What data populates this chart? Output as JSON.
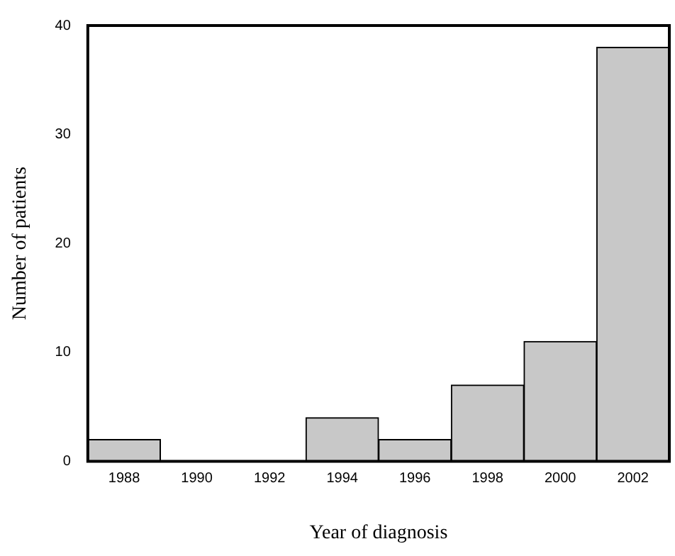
{
  "chart_data": {
    "type": "bar",
    "xlabel": "Year of diagnosis",
    "ylabel": "Number of patients",
    "categories": [
      "1988",
      "1990",
      "1992",
      "1994",
      "1996",
      "1998",
      "2000",
      "2002"
    ],
    "values": [
      2,
      0,
      0,
      4,
      2,
      7,
      11,
      38
    ],
    "color": "#c8c8c8",
    "ylim": [
      0,
      40
    ],
    "yticks": [
      0,
      10,
      20,
      30,
      40
    ],
    "grid": false
  }
}
